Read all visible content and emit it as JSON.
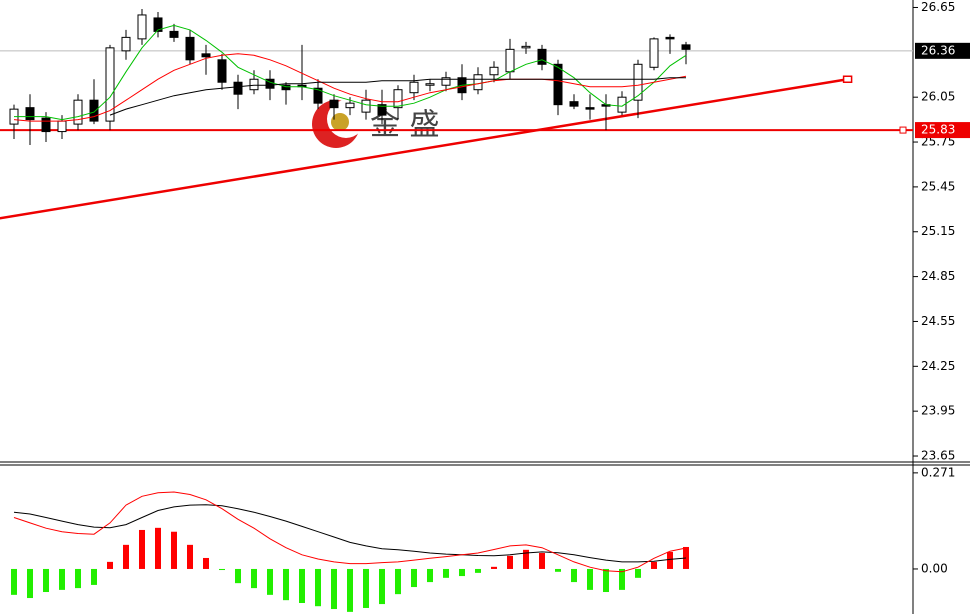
{
  "chart_data": [
    {
      "type": "candlestick",
      "watermark": "金 盛",
      "ylim": [
        23.61,
        26.7
      ],
      "yticks": [
        26.65,
        {
          "value": 26.05,
          "label": "26.05"
        },
        25.75,
        25.45,
        25.15,
        24.85,
        24.55,
        24.25,
        23.95,
        23.65
      ],
      "up_color": "#ffffff",
      "down_color": "#000000",
      "open": [
        25.87,
        25.98,
        25.91,
        25.82,
        25.87,
        26.03,
        25.89,
        26.36,
        26.44,
        26.58,
        26.49,
        26.45,
        26.34,
        26.3,
        26.15,
        26.1,
        26.17,
        26.13,
        26.13,
        26.11,
        26.03,
        25.98,
        25.95,
        26.0,
        25.98,
        26.08,
        26.13,
        26.13,
        26.18,
        26.1,
        26.2,
        26.22,
        26.38,
        26.37,
        26.27,
        26.02,
        25.98,
        26.0,
        25.95,
        26.03,
        26.25,
        26.45,
        26.4
      ],
      "high": [
        26.0,
        26.07,
        25.95,
        25.93,
        26.07,
        26.17,
        26.4,
        26.5,
        26.64,
        26.62,
        26.54,
        26.5,
        26.4,
        26.34,
        26.2,
        26.23,
        26.23,
        26.15,
        26.4,
        26.17,
        26.07,
        26.05,
        26.1,
        26.1,
        26.13,
        26.2,
        26.17,
        26.22,
        26.27,
        26.25,
        26.29,
        26.44,
        26.42,
        26.4,
        26.3,
        26.07,
        26.07,
        26.07,
        26.09,
        26.3,
        26.45,
        26.47,
        26.42
      ],
      "low": [
        25.77,
        25.73,
        25.75,
        25.77,
        25.83,
        25.87,
        25.83,
        26.3,
        26.4,
        26.45,
        26.42,
        26.27,
        26.2,
        26.1,
        25.97,
        26.07,
        26.03,
        26.0,
        26.03,
        25.97,
        25.9,
        25.93,
        25.9,
        25.87,
        25.9,
        26.03,
        26.09,
        26.09,
        26.03,
        26.07,
        26.15,
        26.17,
        26.34,
        26.23,
        25.93,
        25.97,
        25.9,
        25.83,
        25.93,
        25.91,
        26.23,
        26.34,
        26.27
      ],
      "close": [
        25.97,
        25.9,
        25.82,
        25.89,
        26.03,
        25.89,
        26.38,
        26.45,
        26.6,
        26.49,
        26.45,
        26.3,
        26.32,
        26.15,
        26.07,
        26.17,
        26.11,
        26.1,
        26.12,
        26.01,
        25.98,
        26.01,
        26.03,
        25.93,
        26.1,
        26.15,
        26.14,
        26.18,
        26.08,
        26.2,
        26.25,
        26.37,
        26.39,
        26.27,
        26.0,
        25.99,
        25.97,
        25.99,
        26.05,
        26.27,
        26.44,
        26.44,
        26.37
      ],
      "series": [
        {
          "color": "#00c000",
          "values": [
            25.92,
            25.92,
            25.92,
            25.9,
            25.92,
            25.95,
            26.05,
            26.22,
            26.38,
            26.5,
            26.53,
            26.5,
            26.43,
            26.35,
            26.25,
            26.2,
            26.15,
            26.12,
            26.12,
            26.1,
            26.06,
            26.03,
            26.0,
            25.99,
            25.99,
            26.01,
            26.05,
            26.1,
            26.13,
            26.14,
            26.16,
            26.22,
            26.27,
            26.3,
            26.25,
            26.18,
            26.08,
            26.0,
            25.99,
            26.06,
            26.15,
            26.26,
            26.33
          ]
        },
        {
          "color": "#ff0000",
          "values": [
            25.9,
            25.89,
            25.89,
            25.89,
            25.9,
            25.92,
            25.96,
            26.03,
            26.1,
            26.17,
            26.23,
            26.27,
            26.31,
            26.33,
            26.34,
            26.33,
            26.3,
            26.26,
            26.21,
            26.16,
            26.11,
            26.07,
            26.04,
            26.02,
            26.02,
            26.05,
            26.08,
            26.1,
            26.12,
            26.14,
            26.16,
            26.17,
            26.17,
            26.17,
            26.16,
            26.14,
            26.12,
            26.12,
            26.12,
            26.13,
            26.15,
            26.17,
            26.19
          ]
        },
        {
          "color": "#000000",
          "values": [
            null,
            null,
            null,
            null,
            null,
            null,
            25.93,
            25.97,
            26.0,
            26.03,
            26.06,
            26.08,
            26.1,
            26.11,
            26.12,
            26.13,
            26.13,
            26.14,
            26.14,
            26.15,
            26.15,
            26.15,
            26.15,
            26.16,
            26.16,
            26.16,
            26.17,
            26.17,
            26.17,
            26.17,
            26.17,
            26.17,
            26.17,
            26.17,
            26.17,
            26.17,
            26.17,
            26.17,
            26.17,
            26.17,
            26.17,
            26.18,
            26.18
          ]
        }
      ],
      "trendline": {
        "x": [
          -0.9,
          52.1
        ],
        "y": [
          25.24,
          26.17
        ],
        "color": "#ee0000"
      },
      "hline": {
        "value": 25.83,
        "color": "#ee0000"
      },
      "last_price": 26.36
    },
    {
      "type": "macd",
      "ylim": [
        -0.127,
        0.296
      ],
      "yticks": [
        0.271,
        {
          "value": 0,
          "label": "0.00"
        }
      ],
      "up_color": "#ff0000",
      "down_color": "#22ee00",
      "histogram": [
        -0.073,
        -0.082,
        -0.065,
        -0.059,
        -0.054,
        -0.045,
        0.02,
        0.068,
        0.11,
        0.116,
        0.105,
        0.068,
        0.031,
        -0.003,
        -0.04,
        -0.054,
        -0.073,
        -0.088,
        -0.096,
        -0.105,
        -0.113,
        -0.121,
        -0.11,
        -0.099,
        -0.071,
        -0.051,
        -0.037,
        -0.025,
        -0.02,
        -0.011,
        0.006,
        0.037,
        0.054,
        0.045,
        -0.008,
        -0.037,
        -0.059,
        -0.065,
        -0.059,
        -0.025,
        0.02,
        0.048,
        0.062
      ],
      "series": [
        {
          "color": "#000000",
          "values": [
            0.16,
            0.155,
            0.145,
            0.135,
            0.125,
            0.118,
            0.116,
            0.125,
            0.145,
            0.165,
            0.175,
            0.18,
            0.181,
            0.178,
            0.17,
            0.16,
            0.148,
            0.135,
            0.12,
            0.105,
            0.09,
            0.075,
            0.065,
            0.057,
            0.054,
            0.05,
            0.045,
            0.042,
            0.04,
            0.038,
            0.037,
            0.04,
            0.045,
            0.048,
            0.046,
            0.04,
            0.032,
            0.025,
            0.02,
            0.02,
            0.022,
            0.027,
            0.031
          ]
        },
        {
          "color": "#ff0000",
          "values": [
            0.145,
            0.13,
            0.115,
            0.105,
            0.1,
            0.098,
            0.13,
            0.18,
            0.205,
            0.215,
            0.217,
            0.21,
            0.195,
            0.17,
            0.14,
            0.115,
            0.085,
            0.06,
            0.04,
            0.028,
            0.02,
            0.015,
            0.015,
            0.018,
            0.02,
            0.025,
            0.03,
            0.035,
            0.04,
            0.045,
            0.055,
            0.065,
            0.068,
            0.06,
            0.04,
            0.02,
            0.005,
            -0.005,
            -0.008,
            0.005,
            0.03,
            0.05,
            0.059
          ]
        }
      ]
    }
  ]
}
